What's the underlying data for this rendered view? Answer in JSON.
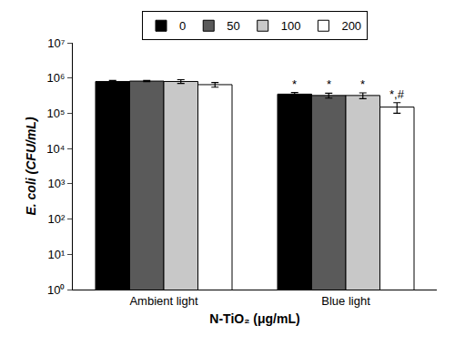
{
  "chart_data": {
    "type": "bar",
    "x_label": "N-TiO₂ (μg/mL)",
    "y_label": "E. coli (CFU/mL)",
    "categories": [
      "Ambient light",
      "Blue light"
    ],
    "series": [
      {
        "name": "0",
        "color": "#000000",
        "values": [
          800000,
          350000
        ],
        "errors": [
          50000,
          40000
        ]
      },
      {
        "name": "50",
        "color": "#5a5a5a",
        "values": [
          820000,
          320000
        ],
        "errors": [
          30000,
          50000
        ]
      },
      {
        "name": "100",
        "color": "#c8c8c8",
        "values": [
          800000,
          320000
        ],
        "errors": [
          100000,
          60000
        ]
      },
      {
        "name": "200",
        "color": "#ffffff",
        "values": [
          650000,
          150000
        ],
        "errors": [
          100000,
          50000
        ]
      }
    ],
    "annotations": [
      {
        "category": "Blue light",
        "series": "0",
        "text": "*"
      },
      {
        "category": "Blue light",
        "series": "50",
        "text": "*"
      },
      {
        "category": "Blue light",
        "series": "100",
        "text": "*"
      },
      {
        "category": "Blue light",
        "series": "200",
        "text": "*,#"
      }
    ],
    "log": "y",
    "ylim": [
      1,
      10000000
    ],
    "yticks": [
      {
        "value": 1,
        "label": "10⁰"
      },
      {
        "value": 10,
        "label": "10¹"
      },
      {
        "value": 100,
        "label": "10²"
      },
      {
        "value": 1000,
        "label": "10³"
      },
      {
        "value": 10000,
        "label": "10⁴"
      },
      {
        "value": 100000,
        "label": "10⁵"
      },
      {
        "value": 1000000,
        "label": "10⁶"
      },
      {
        "value": 10000000,
        "label": "10⁷"
      }
    ],
    "grid": false,
    "legend": "top"
  }
}
